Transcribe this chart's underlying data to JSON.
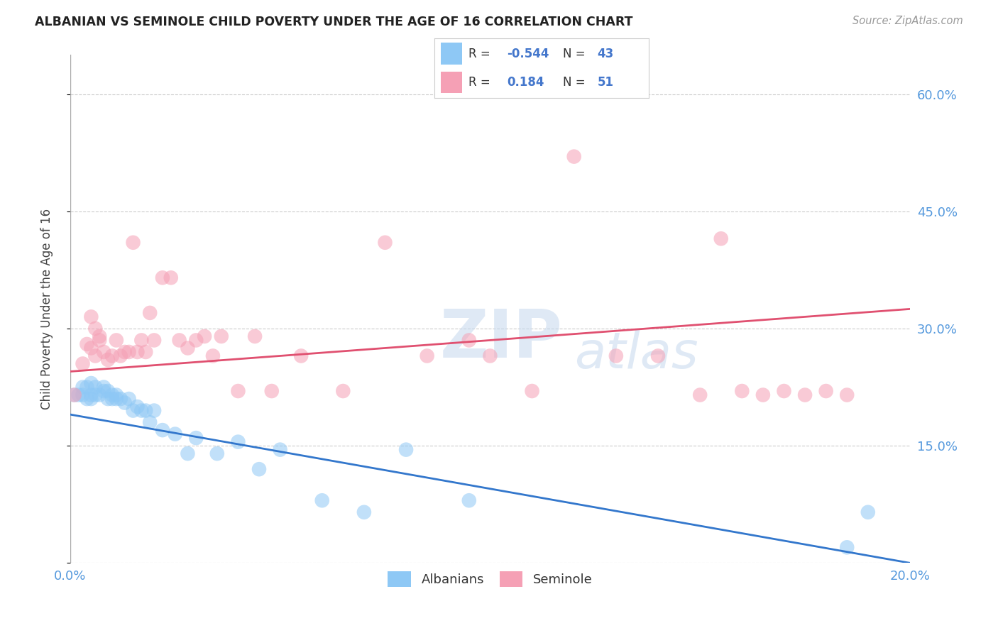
{
  "title": "ALBANIAN VS SEMINOLE CHILD POVERTY UNDER THE AGE OF 16 CORRELATION CHART",
  "source": "Source: ZipAtlas.com",
  "ylabel": "Child Poverty Under the Age of 16",
  "xlim": [
    0.0,
    0.2
  ],
  "ylim": [
    0.0,
    0.65
  ],
  "yticks": [
    0.0,
    0.15,
    0.3,
    0.45,
    0.6
  ],
  "ytick_labels": [
    "",
    "15.0%",
    "30.0%",
    "45.0%",
    "60.0%"
  ],
  "albanian_color": "#8EC8F5",
  "seminole_color": "#F5A0B5",
  "albanian_line_color": "#3377CC",
  "seminole_line_color": "#E05070",
  "watermark_zip": "ZIP",
  "watermark_atlas": "atlas",
  "albanian_x": [
    0.001,
    0.002,
    0.003,
    0.003,
    0.004,
    0.004,
    0.005,
    0.005,
    0.005,
    0.006,
    0.006,
    0.007,
    0.008,
    0.008,
    0.009,
    0.009,
    0.01,
    0.01,
    0.011,
    0.011,
    0.012,
    0.013,
    0.014,
    0.015,
    0.016,
    0.017,
    0.018,
    0.019,
    0.02,
    0.022,
    0.025,
    0.028,
    0.03,
    0.035,
    0.04,
    0.045,
    0.05,
    0.06,
    0.07,
    0.08,
    0.095,
    0.185,
    0.19
  ],
  "albanian_y": [
    0.215,
    0.215,
    0.225,
    0.215,
    0.225,
    0.21,
    0.215,
    0.21,
    0.23,
    0.225,
    0.215,
    0.215,
    0.22,
    0.225,
    0.22,
    0.21,
    0.215,
    0.21,
    0.215,
    0.21,
    0.21,
    0.205,
    0.21,
    0.195,
    0.2,
    0.195,
    0.195,
    0.18,
    0.195,
    0.17,
    0.165,
    0.14,
    0.16,
    0.14,
    0.155,
    0.12,
    0.145,
    0.08,
    0.065,
    0.145,
    0.08,
    0.02,
    0.065
  ],
  "seminole_x": [
    0.001,
    0.003,
    0.004,
    0.005,
    0.005,
    0.006,
    0.006,
    0.007,
    0.007,
    0.008,
    0.009,
    0.01,
    0.011,
    0.012,
    0.013,
    0.014,
    0.015,
    0.016,
    0.017,
    0.018,
    0.019,
    0.02,
    0.022,
    0.024,
    0.026,
    0.028,
    0.03,
    0.032,
    0.034,
    0.036,
    0.04,
    0.044,
    0.048,
    0.055,
    0.065,
    0.075,
    0.085,
    0.095,
    0.1,
    0.11,
    0.12,
    0.13,
    0.14,
    0.15,
    0.155,
    0.16,
    0.165,
    0.17,
    0.175,
    0.18,
    0.185
  ],
  "seminole_y": [
    0.215,
    0.255,
    0.28,
    0.275,
    0.315,
    0.265,
    0.3,
    0.285,
    0.29,
    0.27,
    0.26,
    0.265,
    0.285,
    0.265,
    0.27,
    0.27,
    0.41,
    0.27,
    0.285,
    0.27,
    0.32,
    0.285,
    0.365,
    0.365,
    0.285,
    0.275,
    0.285,
    0.29,
    0.265,
    0.29,
    0.22,
    0.29,
    0.22,
    0.265,
    0.22,
    0.41,
    0.265,
    0.285,
    0.265,
    0.22,
    0.52,
    0.265,
    0.265,
    0.215,
    0.415,
    0.22,
    0.215,
    0.22,
    0.215,
    0.22,
    0.215
  ],
  "alb_line_x0": 0.0,
  "alb_line_y0": 0.19,
  "alb_line_x1": 0.2,
  "alb_line_y1": 0.0,
  "sem_line_x0": 0.0,
  "sem_line_y0": 0.245,
  "sem_line_x1": 0.2,
  "sem_line_y1": 0.325
}
